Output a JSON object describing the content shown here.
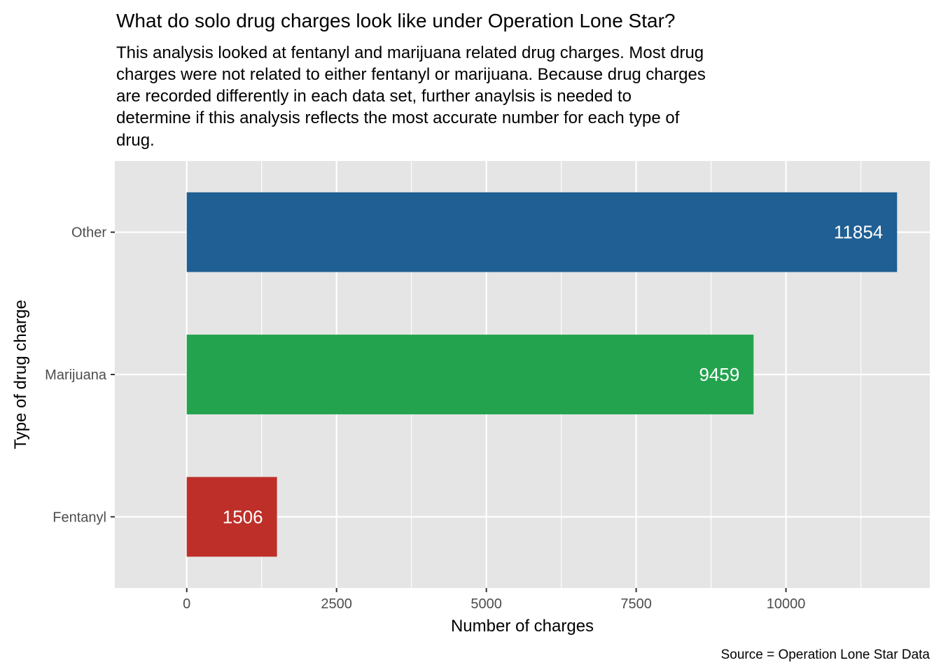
{
  "chart_data": {
    "type": "bar",
    "orientation": "horizontal",
    "title": "What do solo drug charges look like under Operation Lone Star?",
    "subtitle_lines": [
      "This analysis looked at fentanyl and marijuana related drug charges. Most drug",
      "charges were not related to either fentanyl or marijuana. Because drug charges",
      "are recorded differently in each data set, further anaylsis is needed to",
      "determine if this analysis reflects the most accurate number for each type of",
      "drug."
    ],
    "xlabel": "Number of charges",
    "ylabel": "Type of drug charge",
    "caption": "Source = Operation Lone Star Data",
    "categories": [
      "Fentanyl",
      "Marijuana",
      "Other"
    ],
    "values": [
      1506,
      9459,
      11854
    ],
    "data_labels": [
      "1506",
      "9459",
      "11854"
    ],
    "colors": [
      "#be2f29",
      "#24a34f",
      "#1f5f93"
    ],
    "xlim": [
      -1200,
      12400
    ],
    "xticks": [
      0,
      2500,
      5000,
      7500,
      10000
    ],
    "xtick_labels": [
      "0",
      "2500",
      "5000",
      "7500",
      "10000"
    ],
    "grid": true,
    "panel_background": "#e5e5e5",
    "gridline_color": "#ffffff"
  }
}
